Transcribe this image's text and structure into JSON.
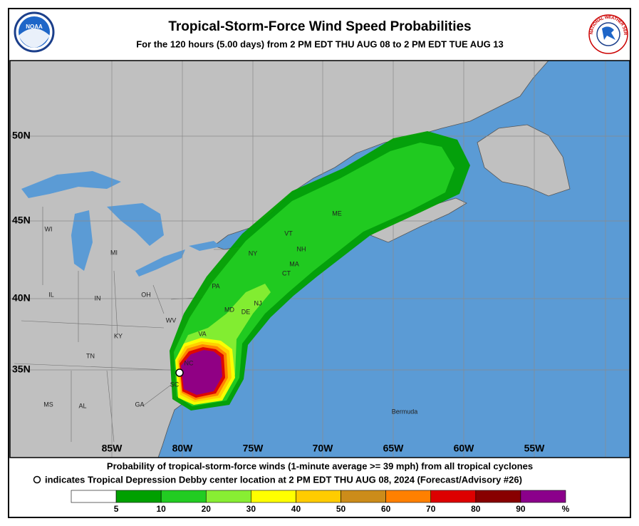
{
  "header": {
    "title": "Tropical-Storm-Force Wind Speed Probabilities",
    "subtitle": "For the 120 hours (5.00 days) from 2 PM EDT THU AUG 08 to 2 PM EDT TUE AUG 13",
    "logo_left": "NOAA",
    "logo_right": "NATIONAL WEATHER SERVICE"
  },
  "map": {
    "lat_labels": [
      "50N",
      "45N",
      "40N",
      "35N"
    ],
    "lon_labels": [
      "85W",
      "80W",
      "75W",
      "70W",
      "65W",
      "60W",
      "55W"
    ],
    "place_labels": [
      "WI",
      "MI",
      "IL",
      "IN",
      "OH",
      "KY",
      "TN",
      "WV",
      "VA",
      "PA",
      "NY",
      "VT",
      "NH",
      "ME",
      "MA",
      "CT",
      "MD",
      "DE",
      "NJ",
      "NC",
      "SC",
      "MS",
      "AL",
      "GA",
      "Bermuda"
    ]
  },
  "footer": {
    "line1": "Probability of tropical-storm-force winds (1-minute average >= 39 mph) from all tropical cyclones",
    "line2": "indicates Tropical Depression Debby center location at 2 PM EDT THU AUG 08, 2024 (Forecast/Advisory #26)"
  },
  "legend": {
    "ticks": [
      5,
      10,
      20,
      30,
      40,
      50,
      60,
      70,
      80,
      90
    ],
    "unit": "%",
    "colors": [
      "#ffffff",
      "#00a000",
      "#22cc22",
      "#88ee33",
      "#ffff00",
      "#ffcc00",
      "#cc8c1a",
      "#ff8000",
      "#dd0000",
      "#880000",
      "#8b008b"
    ]
  }
}
